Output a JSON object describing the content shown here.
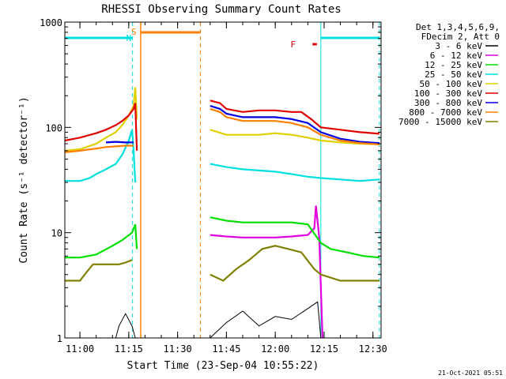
{
  "chart_data": {
    "type": "line",
    "title": "RHESSI Observing Summary Count Rates",
    "xlabel": "Start Time (23-Sep-04 10:55:22)",
    "ylabel": "Count Rate (s⁻¹ detector⁻¹)",
    "footer": "21-Oct-2021 05:51",
    "y_scale": "log",
    "xlim": [
      "10:55:22",
      "12:32:30"
    ],
    "ylim": [
      1,
      1000
    ],
    "x_ticks": [
      "11:00",
      "11:15",
      "11:30",
      "11:45",
      "12:00",
      "12:15",
      "12:30"
    ],
    "y_ticks": [
      "1",
      "10",
      "100",
      "1000"
    ],
    "legend_header": [
      "Det 1,3,4,5,6,9,",
      "FDecim 2, Att 0"
    ],
    "legend_position": "right",
    "markers": [
      {
        "label": "N",
        "color": "#00e0e0",
        "time": "11:16:10"
      },
      {
        "label": "S",
        "color": "#ff8000",
        "time": "11:18:40"
      },
      {
        "label": "F",
        "color": "#e00000",
        "time": "12:10:00"
      }
    ],
    "night_intervals": [
      {
        "start": "10:55:22",
        "end": "11:16:10",
        "color": "#00e0e0"
      },
      {
        "start": "12:14:00",
        "end": "12:32:00",
        "color": "#00e0e0"
      }
    ],
    "saa_interval": {
      "start": "11:18:40",
      "end": "11:37:00",
      "color": "#ff8000"
    },
    "series": [
      {
        "name": "3 - 6 keV",
        "color": "#000000",
        "points": [
          [
            "11:11:00",
            1
          ],
          [
            "11:12:00",
            1.3
          ],
          [
            "11:14:00",
            1.7
          ],
          [
            "11:16:00",
            1.3
          ],
          [
            "11:17:00",
            1
          ],
          [
            "11:40:00",
            1
          ],
          [
            "11:45:00",
            1.4
          ],
          [
            "11:50:00",
            1.8
          ],
          [
            "11:55:00",
            1.3
          ],
          [
            "12:00:00",
            1.6
          ],
          [
            "12:05:00",
            1.5
          ],
          [
            "12:10:00",
            1.9
          ],
          [
            "12:13:00",
            2.2
          ],
          [
            "12:14:00",
            1
          ]
        ]
      },
      {
        "name": "6 - 12 keV",
        "color": "#e000e0",
        "points": [
          [
            "11:40:00",
            9.5
          ],
          [
            "11:45:00",
            9.2
          ],
          [
            "11:50:00",
            9
          ],
          [
            "11:55:00",
            9
          ],
          [
            "12:00:00",
            9
          ],
          [
            "12:05:00",
            9.2
          ],
          [
            "12:10:00",
            9.5
          ],
          [
            "12:12:00",
            11
          ],
          [
            "12:12:30",
            18
          ],
          [
            "12:13:30",
            9
          ],
          [
            "12:14:30",
            1
          ]
        ]
      },
      {
        "name": "12 - 25 keV",
        "color": "#00e000",
        "points": [
          [
            "10:55:22",
            5.8
          ],
          [
            "11:00:00",
            5.8
          ],
          [
            "11:05:00",
            6.2
          ],
          [
            "11:10:00",
            7.5
          ],
          [
            "11:13:00",
            8.5
          ],
          [
            "11:16:00",
            10
          ],
          [
            "11:17:00",
            12
          ],
          [
            "11:17:30",
            7
          ],
          [
            "11:40:00",
            14
          ],
          [
            "11:45:00",
            13
          ],
          [
            "11:50:00",
            12.5
          ],
          [
            "11:55:00",
            12.5
          ],
          [
            "12:00:00",
            12.5
          ],
          [
            "12:05:00",
            12.5
          ],
          [
            "12:10:00",
            12
          ],
          [
            "12:14:00",
            8
          ],
          [
            "12:17:00",
            7
          ],
          [
            "12:22:00",
            6.5
          ],
          [
            "12:27:00",
            6
          ],
          [
            "12:32:00",
            5.8
          ]
        ]
      },
      {
        "name": "25 - 50 keV",
        "color": "#00e0e0",
        "points": [
          [
            "10:55:22",
            31
          ],
          [
            "11:00:00",
            31
          ],
          [
            "11:03:00",
            33
          ],
          [
            "11:05:00",
            36
          ],
          [
            "11:08:00",
            40
          ],
          [
            "11:11:00",
            45
          ],
          [
            "11:13:00",
            55
          ],
          [
            "11:15:00",
            75
          ],
          [
            "11:16:00",
            95
          ],
          [
            "11:16:30",
            60
          ],
          [
            "11:17:00",
            30
          ],
          [
            "11:40:00",
            45
          ],
          [
            "11:45:00",
            42
          ],
          [
            "11:50:00",
            40
          ],
          [
            "11:55:00",
            39
          ],
          [
            "12:00:00",
            38
          ],
          [
            "12:05:00",
            36
          ],
          [
            "12:10:00",
            34
          ],
          [
            "12:14:00",
            33
          ],
          [
            "12:20:00",
            32
          ],
          [
            "12:26:00",
            31
          ],
          [
            "12:32:00",
            32
          ]
        ]
      },
      {
        "name": "50 - 100 keV",
        "color": "#e0d000",
        "points": [
          [
            "10:55:22",
            60
          ],
          [
            "11:00:00",
            62
          ],
          [
            "11:05:00",
            70
          ],
          [
            "11:08:00",
            80
          ],
          [
            "11:11:00",
            90
          ],
          [
            "11:13:00",
            105
          ],
          [
            "11:15:00",
            130
          ],
          [
            "11:16:30",
            160
          ],
          [
            "11:17:00",
            240
          ],
          [
            "11:17:30",
            120
          ],
          [
            "11:40:00",
            95
          ],
          [
            "11:45:00",
            85
          ],
          [
            "11:50:00",
            85
          ],
          [
            "11:55:00",
            85
          ],
          [
            "12:00:00",
            88
          ],
          [
            "12:05:00",
            85
          ],
          [
            "12:10:00",
            80
          ],
          [
            "12:14:00",
            75
          ],
          [
            "12:20:00",
            72
          ],
          [
            "12:26:00",
            70
          ],
          [
            "12:32:00",
            69
          ]
        ]
      },
      {
        "name": "100 - 300 keV",
        "color": "#e00000",
        "points": [
          [
            "10:55:22",
            75
          ],
          [
            "11:00:00",
            80
          ],
          [
            "11:05:00",
            88
          ],
          [
            "11:08:00",
            95
          ],
          [
            "11:11:00",
            105
          ],
          [
            "11:13:00",
            115
          ],
          [
            "11:15:00",
            130
          ],
          [
            "11:16:30",
            150
          ],
          [
            "11:17:00",
            170
          ],
          [
            "11:17:30",
            60
          ],
          [
            "11:40:00",
            180
          ],
          [
            "11:43:00",
            170
          ],
          [
            "11:45:00",
            150
          ],
          [
            "11:50:00",
            140
          ],
          [
            "11:55:00",
            145
          ],
          [
            "12:00:00",
            145
          ],
          [
            "12:05:00",
            140
          ],
          [
            "12:08:00",
            140
          ],
          [
            "12:11:00",
            120
          ],
          [
            "12:14:00",
            100
          ],
          [
            "12:20:00",
            95
          ],
          [
            "12:26:00",
            90
          ],
          [
            "12:32:00",
            87
          ]
        ]
      },
      {
        "name": "300 - 800 keV",
        "color": "#0000e0",
        "points": [
          [
            "11:08:00",
            72
          ],
          [
            "11:11:00",
            73
          ],
          [
            "11:14:00",
            72
          ],
          [
            "11:16:30",
            72
          ],
          [
            "11:40:00",
            160
          ],
          [
            "11:43:00",
            150
          ],
          [
            "11:45:00",
            135
          ],
          [
            "11:50:00",
            125
          ],
          [
            "11:55:00",
            125
          ],
          [
            "12:00:00",
            125
          ],
          [
            "12:05:00",
            120
          ],
          [
            "12:10:00",
            110
          ],
          [
            "12:14:00",
            90
          ],
          [
            "12:20:00",
            78
          ],
          [
            "12:26:00",
            73
          ],
          [
            "12:32:00",
            71
          ]
        ]
      },
      {
        "name": "800 - 7000 keV",
        "color": "#ff8000",
        "points": [
          [
            "10:55:22",
            58
          ],
          [
            "11:00:00",
            60
          ],
          [
            "11:05:00",
            63
          ],
          [
            "11:08:00",
            65
          ],
          [
            "11:11:00",
            66
          ],
          [
            "11:14:00",
            67
          ],
          [
            "11:16:30",
            67
          ],
          [
            "11:40:00",
            150
          ],
          [
            "11:43:00",
            140
          ],
          [
            "11:45:00",
            125
          ],
          [
            "11:50:00",
            115
          ],
          [
            "11:55:00",
            115
          ],
          [
            "12:00:00",
            115
          ],
          [
            "12:05:00",
            110
          ],
          [
            "12:10:00",
            100
          ],
          [
            "12:14:00",
            85
          ],
          [
            "12:20:00",
            75
          ],
          [
            "12:26:00",
            71
          ],
          [
            "12:32:00",
            69
          ]
        ]
      },
      {
        "name": "7000 - 15000 keV",
        "color": "#808000",
        "points": [
          [
            "10:55:22",
            3.5
          ],
          [
            "11:00:00",
            3.5
          ],
          [
            "11:02:00",
            4.2
          ],
          [
            "11:04:00",
            5
          ],
          [
            "11:08:00",
            5
          ],
          [
            "11:12:00",
            5
          ],
          [
            "11:14:00",
            5.2
          ],
          [
            "11:16:00",
            5.5
          ],
          [
            "11:40:00",
            4
          ],
          [
            "11:44:00",
            3.5
          ],
          [
            "11:48:00",
            4.5
          ],
          [
            "11:52:00",
            5.5
          ],
          [
            "11:56:00",
            7
          ],
          [
            "12:00:00",
            7.5
          ],
          [
            "12:04:00",
            7
          ],
          [
            "12:08:00",
            6.5
          ],
          [
            "12:12:00",
            4.5
          ],
          [
            "12:14:00",
            4
          ],
          [
            "12:20:00",
            3.5
          ],
          [
            "12:26:00",
            3.5
          ],
          [
            "12:32:00",
            3.5
          ]
        ]
      }
    ]
  }
}
